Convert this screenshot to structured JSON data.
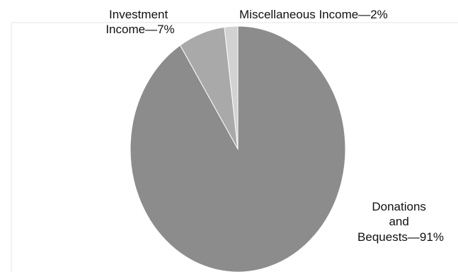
{
  "chart_data": {
    "type": "pie",
    "title": "",
    "slices": [
      {
        "label_lines": [
          "Donations",
          "and",
          "Bequests—91%"
        ],
        "value": 91,
        "color": "#8c8c8c"
      },
      {
        "label_lines": [
          "Investment",
          "Income—7%"
        ],
        "value": 7,
        "color": "#a9a9a9"
      },
      {
        "label_lines": [
          "Miscellaneous Income—2%"
        ],
        "value": 2,
        "color": "#d2d2d2"
      }
    ],
    "legend": "none",
    "grid": false,
    "background": "#ffffff",
    "frame_color": "#e8e8e8"
  }
}
